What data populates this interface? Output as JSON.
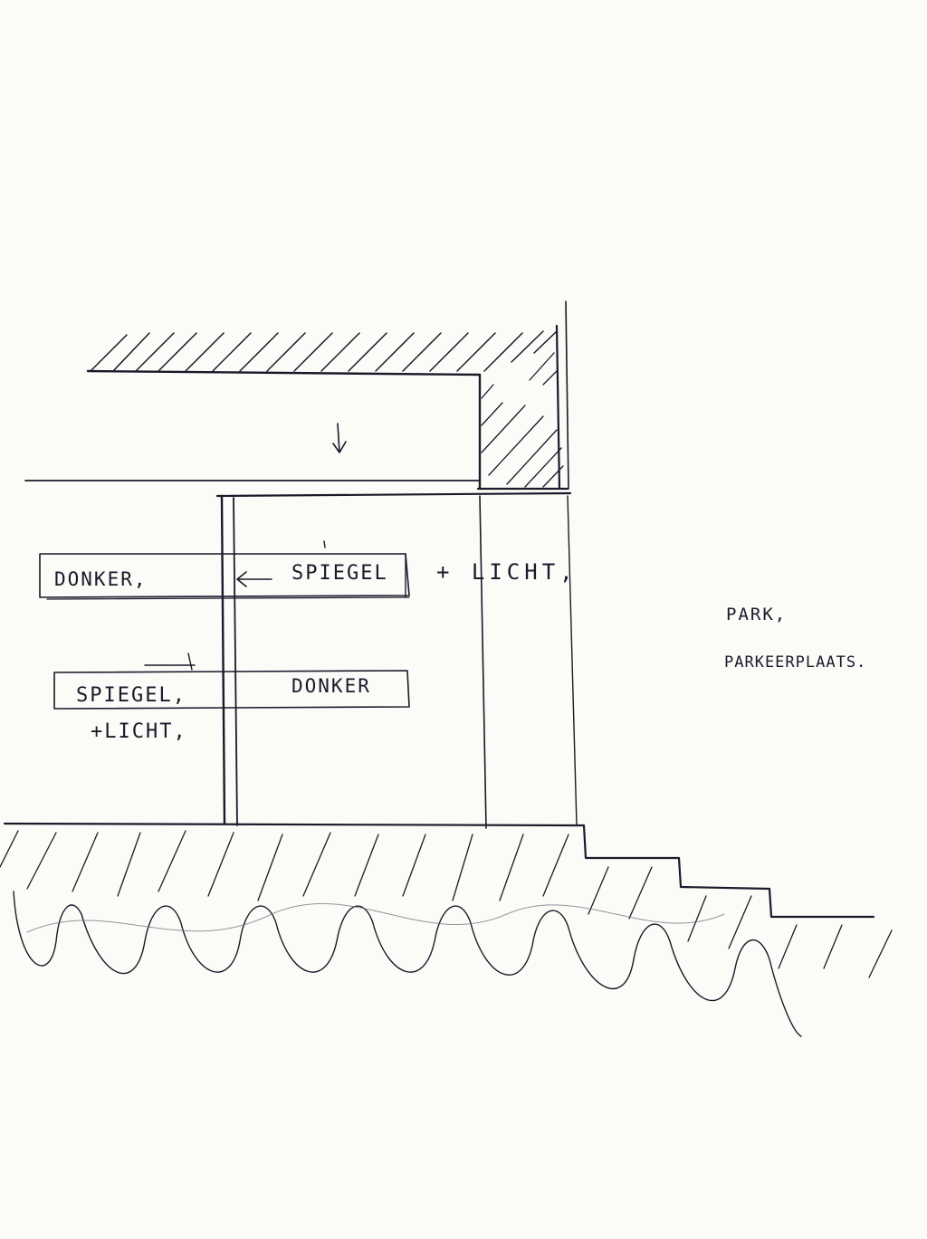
{
  "sketch": {
    "ink_color": "#1a1a2a",
    "paper_color": "#fbfbf8",
    "labels": {
      "donker_top": "DONKER,",
      "spiegel_top": "SPIEGEL",
      "licht_top": "+ LICHT,",
      "donker_mid": "DONKER",
      "spiegel_mid": "SPIEGEL,",
      "licht_mid": "+LICHT,",
      "park": "PARK,",
      "parkeerplaats": "PARKEERPLAATS."
    }
  }
}
